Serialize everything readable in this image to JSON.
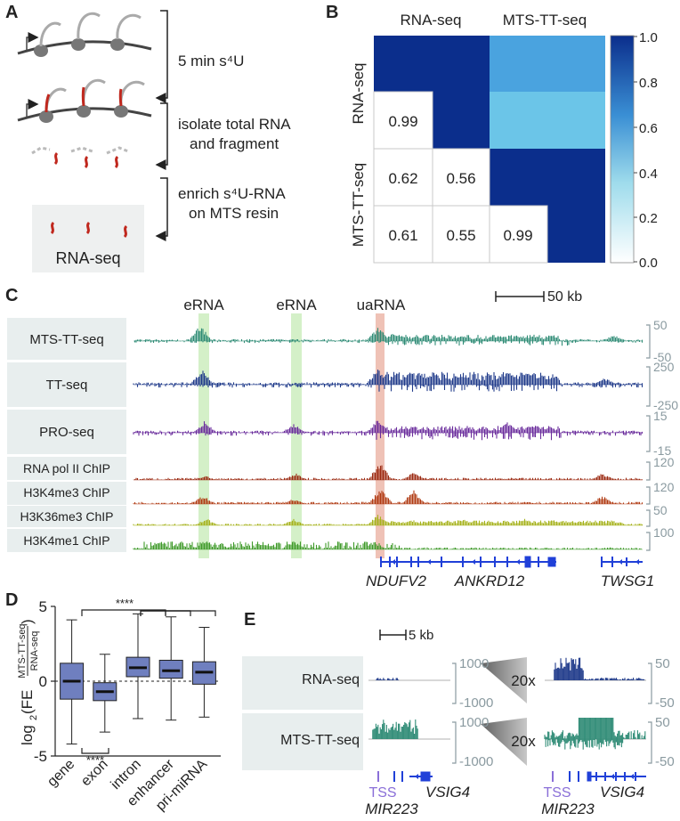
{
  "panel_letters": [
    "A",
    "B",
    "C",
    "D",
    "E"
  ],
  "panelA": {
    "steps": [
      "5 min s⁴U",
      "isolate total RNA",
      "and fragment",
      "enrich s⁴U-RNA",
      "on MTS resin"
    ],
    "box_label": "RNA-seq"
  },
  "panelB": {
    "col_labels": [
      "RNA-seq",
      "MTS-TT-seq"
    ],
    "row_labels": [
      "RNA-seq",
      "MTS-TT-seq"
    ],
    "colorbar_ticks": [
      "1.0",
      "0.8",
      "0.6",
      "0.4",
      "0.2",
      "0.0"
    ],
    "lower_values": [
      [
        "0.99"
      ],
      [
        "0.62",
        "0.56"
      ],
      [
        "0.61",
        "0.55",
        "0.99"
      ]
    ]
  },
  "panelC": {
    "scale_label": "50 kb",
    "highlight_labels": [
      "eRNA",
      "eRNA",
      "uaRNA"
    ],
    "tracks": [
      {
        "name": "MTS-TT-seq",
        "color": "#2e8b75",
        "max": "50",
        "min": "-50"
      },
      {
        "name": "TT-seq",
        "color": "#1f3a8a",
        "max": "250",
        "min": "-250"
      },
      {
        "name": "PRO-seq",
        "color": "#6a2c9c",
        "max": "15",
        "min": "-15"
      },
      {
        "name": "RNA pol II ChIP",
        "color": "#9b2a12",
        "max": "120",
        "min": ""
      },
      {
        "name": "H3K4me3 ChIP",
        "color": "#b03a12",
        "max": "120",
        "min": ""
      },
      {
        "name": "H3K36me3 ChIP",
        "color": "#a6b21c",
        "max": "50",
        "min": ""
      },
      {
        "name": "H3K4me1 ChIP",
        "color": "#3f9a2a",
        "max": "100",
        "min": ""
      }
    ],
    "genes": [
      "NDUFV2",
      "ANKRD12",
      "TWSG1"
    ]
  },
  "panelD": {
    "ylabel_prefix": "log",
    "ylabel_sub": "2",
    "ylabel_fe": "(FE",
    "ylabel_num": "MTS-TT-seq",
    "ylabel_den": "RNA-seq",
    "ylabel_close": ")",
    "yticks": [
      "5",
      "0",
      "-5"
    ],
    "significance": [
      "****",
      "****"
    ],
    "chart_data": {
      "type": "box",
      "categories": [
        "gene",
        "exon",
        "intron",
        "enhancer",
        "pri-miRNA"
      ],
      "ylim": [
        -5,
        5
      ],
      "series": [
        {
          "name": "gene",
          "whisker_low": -4.2,
          "q1": -1.2,
          "median": 0.0,
          "q3": 1.2,
          "whisker_high": 4.1
        },
        {
          "name": "exon",
          "whisker_low": -3.4,
          "q1": -1.3,
          "median": -0.7,
          "q3": -0.1,
          "whisker_high": 1.8
        },
        {
          "name": "intron",
          "whisker_low": -2.5,
          "q1": 0.3,
          "median": 0.9,
          "q3": 1.6,
          "whisker_high": 4.5
        },
        {
          "name": "enhancer",
          "whisker_low": -2.6,
          "q1": 0.2,
          "median": 0.7,
          "q3": 1.4,
          "whisker_high": 4.3
        },
        {
          "name": "pri-miRNA",
          "whisker_low": -2.4,
          "q1": -0.2,
          "median": 0.6,
          "q3": 1.3,
          "whisker_high": 3.6
        }
      ]
    }
  },
  "panelE": {
    "scale_label": "5 kb",
    "zoom_label": "20x",
    "tracks": [
      {
        "name": "RNA-seq",
        "color": "#1f3a8a",
        "left_max": "1000",
        "left_min": "-1000",
        "right_max": "50",
        "right_min": "-50"
      },
      {
        "name": "MTS-TT-seq",
        "color": "#2e8b75",
        "left_max": "1000",
        "left_min": "-1000",
        "right_max": "50",
        "right_min": "-50"
      }
    ],
    "tss_label": "TSS",
    "mir_label": "MIR223",
    "gene_label": "VSIG4"
  },
  "colors": {
    "heat_dark": "#0b2e8c",
    "heat_mid": "#4aa3df",
    "heat_light": "#6bc5e8",
    "label_bg": "#e8eeee",
    "box_fill": "#6f7fbf",
    "green_hl": "#d4f0c8",
    "red_hl": "#efc2b6",
    "gene_blue": "#2040d8",
    "tss_purple": "#8a6fd8",
    "axis_gray": "#8a9aa0"
  }
}
